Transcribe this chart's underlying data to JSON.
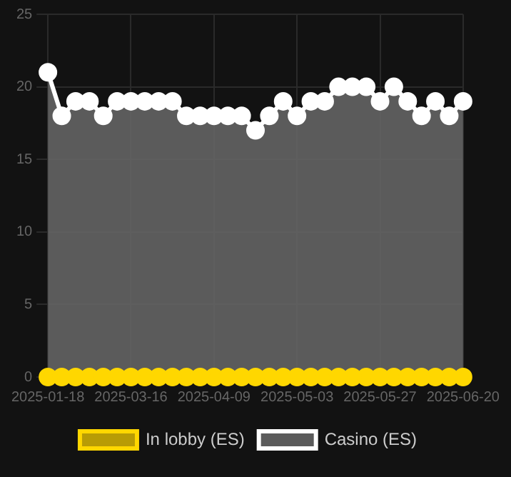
{
  "chart_data": {
    "type": "area",
    "categories": [
      "2025-01-18",
      null,
      null,
      null,
      null,
      null,
      "2025-03-16",
      null,
      null,
      null,
      null,
      null,
      "2025-04-09",
      null,
      null,
      null,
      null,
      null,
      "2025-05-03",
      null,
      null,
      null,
      null,
      null,
      "2025-05-27",
      null,
      null,
      null,
      null,
      null,
      "2025-06-20"
    ],
    "series": [
      {
        "name": "In lobby (ES)",
        "type": "line",
        "color": "#ffd700",
        "values": [
          0,
          0,
          0,
          0,
          0,
          0,
          0,
          0,
          0,
          0,
          0,
          0,
          0,
          0,
          0,
          0,
          0,
          0,
          0,
          0,
          0,
          0,
          0,
          0,
          0,
          0,
          0,
          0,
          0,
          0,
          0
        ]
      },
      {
        "name": "Casino (ES)",
        "color": "#ffffff",
        "values": [
          21,
          18,
          19,
          19,
          18,
          19,
          19,
          19,
          19,
          19,
          18,
          18,
          18,
          18,
          18,
          17,
          18,
          19,
          18,
          19,
          19,
          20,
          20,
          20,
          19,
          20,
          19,
          18,
          19,
          18,
          19
        ]
      }
    ],
    "ylim": [
      0,
      25
    ],
    "yticks": [
      0,
      5,
      10,
      15,
      20,
      25
    ],
    "grid": true,
    "legend": "bottom",
    "marker": "circle"
  }
}
